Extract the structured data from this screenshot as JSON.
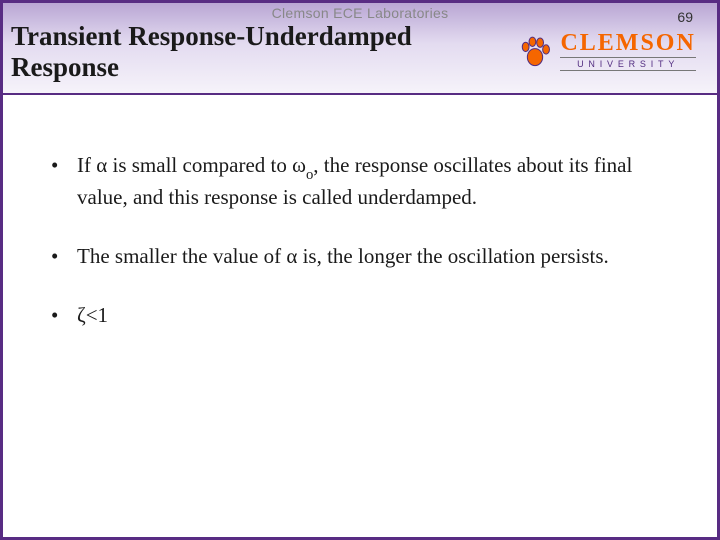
{
  "header": {
    "lab_label": "Clemson ECE Laboratories",
    "title": "Transient Response-Underdamped Response",
    "page_number": "69",
    "logo": {
      "name": "CLEMSON",
      "subtext": "UNIVERSITY",
      "brand_orange": "#f56600",
      "brand_purple": "#582c83"
    }
  },
  "bullets": [
    {
      "html": "If α is small compared to ω<span class=\"sub\">o</span>, the response oscillates about its final value, and this response is called underdamped."
    },
    {
      "html": "The smaller the value of α is, the longer the oscillation persists."
    },
    {
      "html": "ζ&lt;1"
    }
  ],
  "styling": {
    "slide_width": 720,
    "slide_height": 540,
    "border_color": "#582c83",
    "header_gradient_top": "#b9a6d4",
    "header_gradient_bottom": "#f6f3fa",
    "title_font": "Times New Roman",
    "title_fontsize": 27,
    "body_font": "Times New Roman",
    "body_fontsize": 21,
    "lab_label_color": "#888888",
    "text_color": "#1a1a1a",
    "background_color": "#ffffff"
  }
}
